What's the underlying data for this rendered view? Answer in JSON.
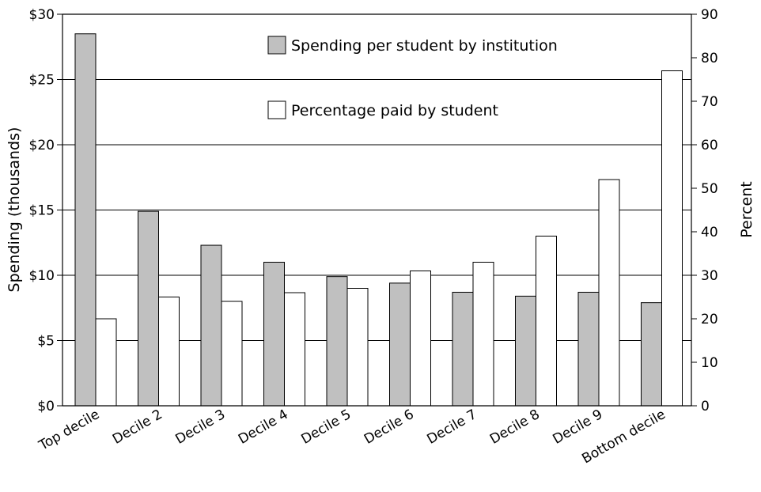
{
  "chart_data": {
    "type": "bar",
    "categories": [
      "Top decile",
      "Decile 2",
      "Decile 3",
      "Decile 4",
      "Decile 5",
      "Decile 6",
      "Decile 7",
      "Decile 8",
      "Decile 9",
      "Bottom decile"
    ],
    "series": [
      {
        "name": "Spending per student by institution",
        "axis": "left",
        "color": "#c0c0c0",
        "values": [
          28.5,
          14.9,
          12.3,
          11.0,
          9.9,
          9.4,
          8.7,
          8.4,
          8.7,
          7.9
        ]
      },
      {
        "name": "Percentage paid by student",
        "axis": "right",
        "color": "#ffffff",
        "values": [
          20,
          25,
          24,
          26,
          27,
          31,
          33,
          39,
          52,
          77
        ]
      }
    ],
    "ylabel_left": "Spending (thousands)",
    "ylabel_right": "Percent",
    "ylim_left": [
      0,
      30
    ],
    "ylim_right": [
      0,
      90
    ],
    "yticks_left": [
      "$0",
      "$5",
      "$10",
      "$15",
      "$20",
      "$25",
      "$30"
    ],
    "yticks_right": [
      "0",
      "10",
      "20",
      "30",
      "40",
      "50",
      "60",
      "70",
      "80",
      "90"
    ],
    "grid": true,
    "legend_position": "top-center"
  }
}
